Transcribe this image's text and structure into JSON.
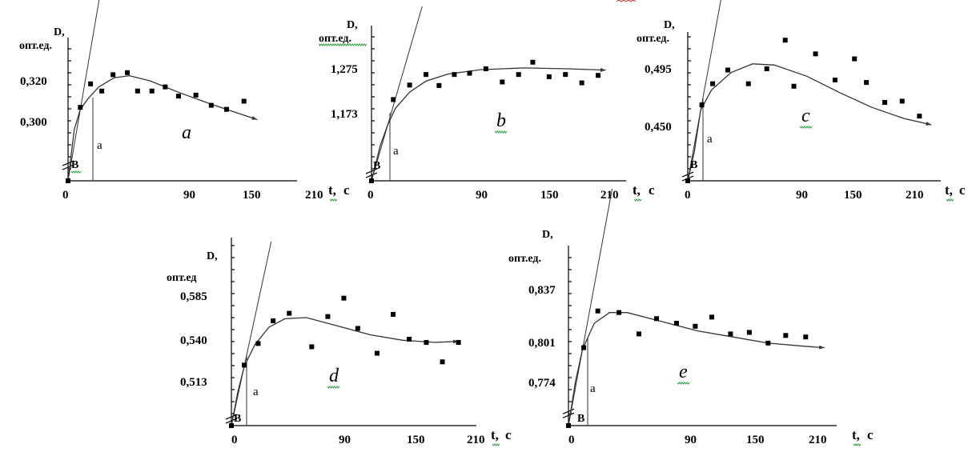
{
  "chart_data": [
    {
      "type": "scatter",
      "panel_label": "a",
      "y_label_top": "D,",
      "y_label_unit": "опт.ед.",
      "x_label": "t, c",
      "x_ticks": [
        "0",
        "90",
        "150",
        "210"
      ],
      "y_ticks": [
        "0,320",
        "0,300"
      ],
      "marker_a": "a",
      "marker_b": "B",
      "points": [
        [
          12,
          0.304
        ],
        [
          22,
          0.327
        ],
        [
          33,
          0.32
        ],
        [
          44,
          0.336
        ],
        [
          58,
          0.338
        ],
        [
          68,
          0.32
        ],
        [
          82,
          0.32
        ],
        [
          95,
          0.324
        ],
        [
          108,
          0.315
        ],
        [
          125,
          0.316
        ],
        [
          140,
          0.306
        ],
        [
          155,
          0.302
        ],
        [
          172,
          0.31
        ]
      ],
      "curve": [
        [
          0,
          0.232
        ],
        [
          6,
          0.282
        ],
        [
          12,
          0.302
        ],
        [
          20,
          0.313
        ],
        [
          30,
          0.324
        ],
        [
          45,
          0.333
        ],
        [
          60,
          0.335
        ],
        [
          80,
          0.33
        ],
        [
          110,
          0.318
        ],
        [
          140,
          0.307
        ],
        [
          170,
          0.297
        ],
        [
          185,
          0.292
        ]
      ]
    },
    {
      "type": "scatter",
      "panel_label": "b",
      "y_label_top": "D,",
      "y_label_unit": "опт.ед.",
      "x_label": "t, c",
      "x_ticks": [
        "0",
        "90",
        "150",
        "210"
      ],
      "y_ticks": [
        "1,275",
        "1,173"
      ],
      "marker_a": "a",
      "marker_b": "B",
      "points": [
        [
          20,
          1.205
        ],
        [
          35,
          1.238
        ],
        [
          50,
          1.262
        ],
        [
          62,
          1.237
        ],
        [
          76,
          1.262
        ],
        [
          90,
          1.265
        ],
        [
          105,
          1.275
        ],
        [
          120,
          1.245
        ],
        [
          135,
          1.262
        ],
        [
          148,
          1.29
        ],
        [
          163,
          1.257
        ],
        [
          178,
          1.262
        ],
        [
          193,
          1.243
        ],
        [
          208,
          1.26
        ]
      ],
      "curve": [
        [
          0,
          1.02
        ],
        [
          8,
          1.1
        ],
        [
          15,
          1.148
        ],
        [
          22,
          1.185
        ],
        [
          35,
          1.222
        ],
        [
          50,
          1.247
        ],
        [
          70,
          1.263
        ],
        [
          100,
          1.273
        ],
        [
          140,
          1.277
        ],
        [
          180,
          1.275
        ],
        [
          215,
          1.272
        ]
      ]
    },
    {
      "type": "scatter",
      "panel_label": "c",
      "y_label_top": "D,",
      "y_label_unit": "опт.ед.",
      "x_label": "t, c",
      "x_ticks": [
        "0",
        "90",
        "150",
        "210"
      ],
      "y_ticks": [
        "0,495",
        "0,450"
      ],
      "marker_a": "a",
      "marker_b": "B",
      "points": [
        [
          13,
          0.466
        ],
        [
          23,
          0.483
        ],
        [
          37,
          0.494
        ],
        [
          56,
          0.483
        ],
        [
          73,
          0.495
        ],
        [
          90,
          0.518
        ],
        [
          98,
          0.481
        ],
        [
          118,
          0.507
        ],
        [
          136,
          0.486
        ],
        [
          154,
          0.503
        ],
        [
          165,
          0.484
        ],
        [
          182,
          0.468
        ],
        [
          198,
          0.469
        ],
        [
          214,
          0.457
        ]
      ],
      "curve": [
        [
          0,
          0.405
        ],
        [
          6,
          0.428
        ],
        [
          12,
          0.462
        ],
        [
          22,
          0.478
        ],
        [
          40,
          0.492
        ],
        [
          60,
          0.499
        ],
        [
          80,
          0.498
        ],
        [
          110,
          0.489
        ],
        [
          140,
          0.476
        ],
        [
          170,
          0.464
        ],
        [
          200,
          0.455
        ],
        [
          225,
          0.45
        ]
      ]
    },
    {
      "type": "scatter",
      "panel_label": "d",
      "y_label_top": "D,",
      "y_label_unit": "опт.ед",
      "x_label": "t, c",
      "x_ticks": [
        "0",
        "90",
        "150",
        "210"
      ],
      "y_ticks": [
        "0,585",
        "0,540",
        "0,513"
      ],
      "marker_a": "a",
      "marker_b": "B",
      "points": [
        [
          12,
          0.521
        ],
        [
          25,
          0.541
        ],
        [
          39,
          0.562
        ],
        [
          54,
          0.569
        ],
        [
          75,
          0.538
        ],
        [
          90,
          0.566
        ],
        [
          105,
          0.583
        ],
        [
          118,
          0.555
        ],
        [
          136,
          0.532
        ],
        [
          151,
          0.568
        ],
        [
          166,
          0.545
        ],
        [
          182,
          0.542
        ],
        [
          197,
          0.524
        ],
        [
          212,
          0.542
        ]
      ],
      "curve": [
        [
          0,
          0.465
        ],
        [
          6,
          0.496
        ],
        [
          12,
          0.52
        ],
        [
          22,
          0.54
        ],
        [
          35,
          0.556
        ],
        [
          50,
          0.564
        ],
        [
          70,
          0.565
        ],
        [
          100,
          0.557
        ],
        [
          130,
          0.549
        ],
        [
          160,
          0.544
        ],
        [
          190,
          0.542
        ],
        [
          212,
          0.543
        ]
      ]
    },
    {
      "type": "scatter",
      "panel_label": "e",
      "y_label_top": "D,",
      "y_label_unit": "опт.ед.",
      "x_label": "t, c",
      "x_ticks": [
        "0",
        "90",
        "150",
        "210"
      ],
      "y_ticks": [
        "0,837",
        "0,801",
        "0,774"
      ],
      "marker_a": "a",
      "marker_b": "B",
      "points": [
        [
          13,
          0.799
        ],
        [
          25,
          0.823
        ],
        [
          43,
          0.822
        ],
        [
          60,
          0.808
        ],
        [
          75,
          0.818
        ],
        [
          92,
          0.815
        ],
        [
          108,
          0.813
        ],
        [
          122,
          0.819
        ],
        [
          138,
          0.808
        ],
        [
          154,
          0.809
        ],
        [
          170,
          0.802
        ],
        [
          185,
          0.807
        ],
        [
          202,
          0.806
        ]
      ],
      "curve": [
        [
          0,
          0.748
        ],
        [
          6,
          0.777
        ],
        [
          12,
          0.798
        ],
        [
          22,
          0.815
        ],
        [
          35,
          0.822
        ],
        [
          50,
          0.822
        ],
        [
          80,
          0.816
        ],
        [
          110,
          0.81
        ],
        [
          140,
          0.806
        ],
        [
          170,
          0.802
        ],
        [
          200,
          0.8
        ],
        [
          218,
          0.799
        ]
      ]
    }
  ]
}
